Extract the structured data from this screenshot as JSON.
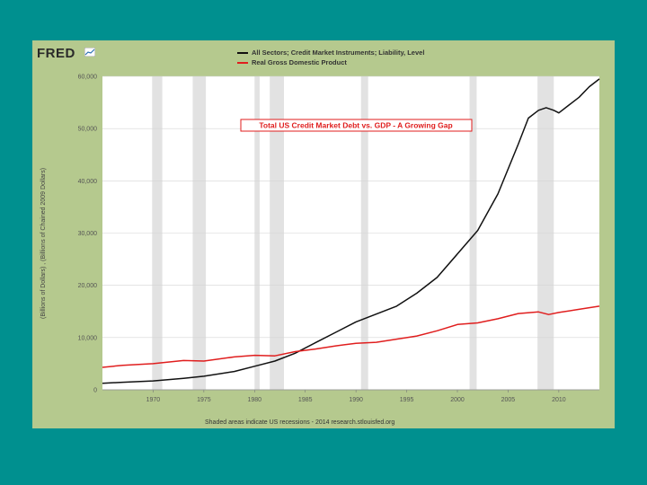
{
  "logo": {
    "text": "FRED"
  },
  "colors": {
    "background": "#00908f",
    "panel": "#b5c98e",
    "debt": "#111111",
    "gdp": "#e01e1e",
    "recession": "#e2e2e2",
    "title": "#e01e1e"
  },
  "chart_data": {
    "type": "line",
    "title": "Total US Credit Market Debt vs. GDP - A Growing Gap",
    "ylabel": "(Billions of Dollars) , (Billions of Chained 2009 Dollars)",
    "xlabel": "",
    "footer": "Shaded areas indicate US recessions - 2014 research.stlouisfed.org",
    "xlim": [
      1965,
      2014
    ],
    "ylim": [
      0,
      60000
    ],
    "yticks": [
      0,
      10000,
      20000,
      30000,
      40000,
      50000,
      60000
    ],
    "ytick_labels": [
      "0",
      "10,000",
      "20,000",
      "30,000",
      "40,000",
      "50,000",
      "60,000"
    ],
    "xticks": [
      1970,
      1975,
      1980,
      1985,
      1990,
      1995,
      2000,
      2005,
      2010
    ],
    "xtick_labels": [
      "1970",
      "1975",
      "1980",
      "1985",
      "1990",
      "1995",
      "2000",
      "2005",
      "2010"
    ],
    "grid": true,
    "legend_position": "top",
    "recessions": [
      [
        1969.9,
        1970.9
      ],
      [
        1973.9,
        1975.2
      ],
      [
        1980.0,
        1980.5
      ],
      [
        1981.5,
        1982.9
      ],
      [
        1990.5,
        1991.2
      ],
      [
        2001.2,
        2001.9
      ],
      [
        2007.9,
        2009.5
      ]
    ],
    "series": [
      {
        "name": "All Sectors; Credit Market Instruments; Liability, Level",
        "x": [
          1965,
          1967,
          1970,
          1973,
          1975,
          1978,
          1980,
          1982,
          1984,
          1986,
          1988,
          1990,
          1992,
          1994,
          1996,
          1998,
          2000,
          2002,
          2004,
          2006,
          2007,
          2008,
          2008.75,
          2009.5,
          2010,
          2011,
          2012,
          2013,
          2014
        ],
        "y": [
          1250,
          1450,
          1700,
          2200,
          2600,
          3500,
          4500,
          5500,
          7000,
          9000,
          11000,
          13000,
          14500,
          16000,
          18500,
          21500,
          26000,
          30500,
          37500,
          47000,
          52000,
          53500,
          54000,
          53500,
          53000,
          54500,
          56000,
          58000,
          59500
        ]
      },
      {
        "name": "Real Gross Domestic Product",
        "x": [
          1965,
          1967,
          1970,
          1973,
          1975,
          1978,
          1980,
          1982,
          1984,
          1986,
          1988,
          1990,
          1992,
          1994,
          1996,
          1998,
          2000,
          2002,
          2004,
          2006,
          2008,
          2009,
          2010,
          2012,
          2014
        ],
        "y": [
          4300,
          4700,
          5000,
          5600,
          5500,
          6300,
          6600,
          6500,
          7300,
          7800,
          8400,
          8900,
          9100,
          9700,
          10300,
          11300,
          12500,
          12800,
          13600,
          14600,
          14900,
          14400,
          14800,
          15400,
          16000
        ]
      }
    ]
  }
}
